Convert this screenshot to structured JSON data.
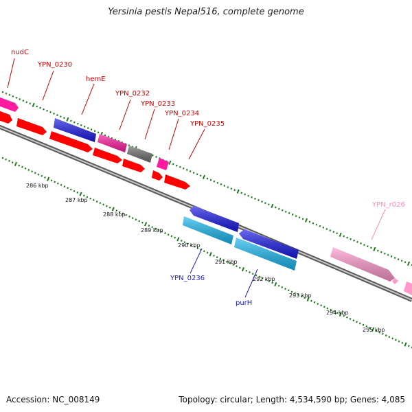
{
  "title": "Yersinia pestis Nepal516, complete genome",
  "accession": "Accession: NC_008149",
  "summary": "Topology: circular; Length: 4,534,590 bp; Genes: 4,085",
  "colors": {
    "forward_cds": "#ff0000",
    "forward_named": "#ff1aa0",
    "forward_hypothetical_dark": "#6e6e6e",
    "reverse_cds_dark": "#1a1ae6",
    "reverse_cds_light": "#1ab8f0",
    "rna": "#ff99cc",
    "ticks": "#1a7a1a",
    "backbone": "#888888",
    "label_red": "#cc0000",
    "label_blue": "#1a1acc",
    "label_pink": "#ff88bb"
  },
  "scale_ticks": [
    {
      "label": "286 kbp"
    },
    {
      "label": "287 kbp"
    },
    {
      "label": "288 kbp"
    },
    {
      "label": "289 kbp"
    },
    {
      "label": "290 kbp"
    },
    {
      "label": "291 kbp"
    },
    {
      "label": "292 kbp"
    },
    {
      "label": "293 kbp"
    },
    {
      "label": "294 kbp"
    },
    {
      "label": "295 kbp"
    }
  ],
  "gene_labels": [
    {
      "name": "nudC",
      "color": "label_red"
    },
    {
      "name": "YPN_0230",
      "color": "label_red"
    },
    {
      "name": "hemE",
      "color": "label_red"
    },
    {
      "name": "YPN_0232",
      "color": "label_red"
    },
    {
      "name": "YPN_0233",
      "color": "label_red"
    },
    {
      "name": "YPN_0234",
      "color": "label_red"
    },
    {
      "name": "YPN_0235",
      "color": "label_red"
    },
    {
      "name": "YPN_r026",
      "color": "label_pink"
    },
    {
      "name": "YPN_0236",
      "color": "label_blue"
    },
    {
      "name": "purH",
      "color": "label_blue"
    }
  ]
}
